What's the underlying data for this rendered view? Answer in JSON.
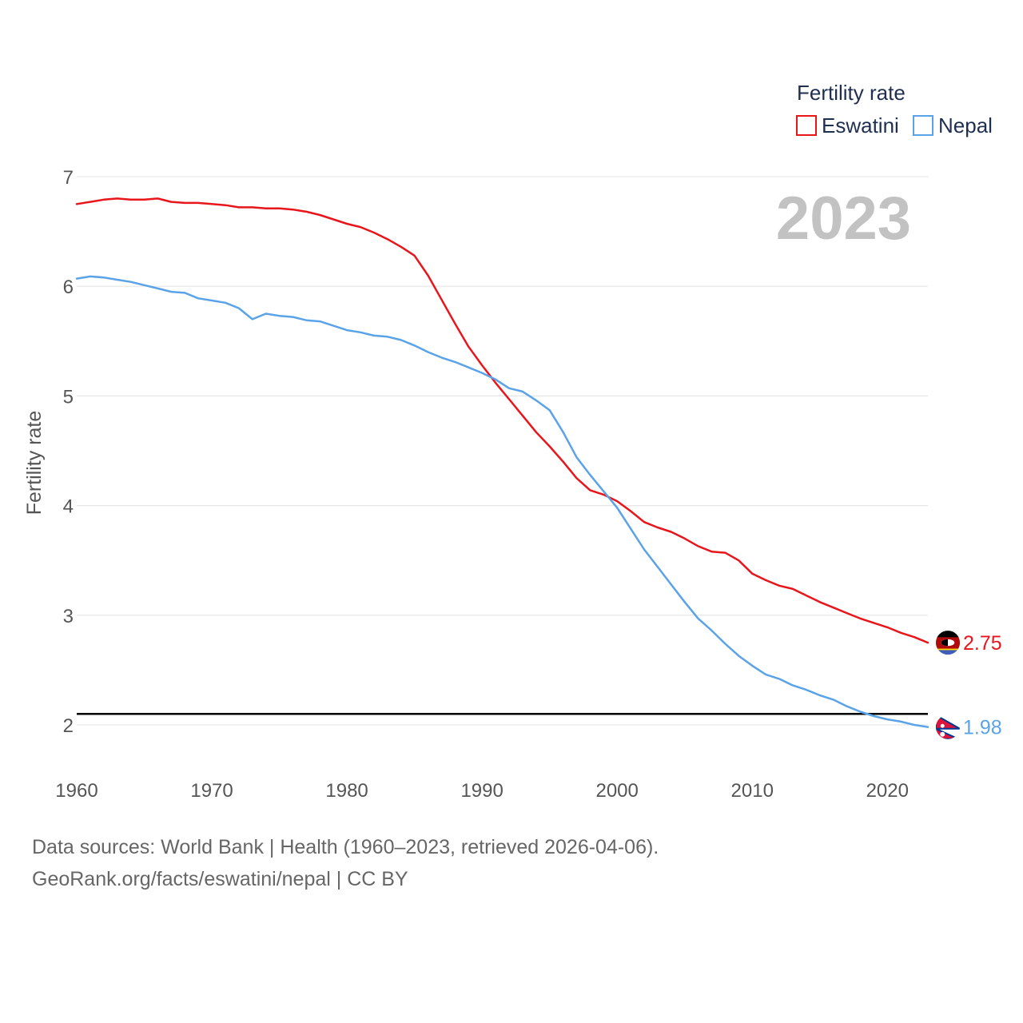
{
  "chart_data": {
    "type": "line",
    "title": "",
    "ylabel": "Fertility rate",
    "xlabel": "",
    "xlim": [
      1960,
      2023
    ],
    "ylim": [
      1.7,
      7.0
    ],
    "xticks": [
      1960,
      1970,
      1980,
      1990,
      2000,
      2010,
      2020
    ],
    "yticks": [
      2,
      3,
      4,
      5,
      6,
      7
    ],
    "year_label": "2023",
    "legend_title": "Fertility rate",
    "reference_line": 2.1,
    "x": [
      1960,
      1961,
      1962,
      1963,
      1964,
      1965,
      1966,
      1967,
      1968,
      1969,
      1970,
      1971,
      1972,
      1973,
      1974,
      1975,
      1976,
      1977,
      1978,
      1979,
      1980,
      1981,
      1982,
      1983,
      1984,
      1985,
      1986,
      1987,
      1988,
      1989,
      1990,
      1991,
      1992,
      1993,
      1994,
      1995,
      1996,
      1997,
      1998,
      1999,
      2000,
      2001,
      2002,
      2003,
      2004,
      2005,
      2006,
      2007,
      2008,
      2009,
      2010,
      2011,
      2012,
      2013,
      2014,
      2015,
      2016,
      2017,
      2018,
      2019,
      2020,
      2021,
      2022,
      2023
    ],
    "series": [
      {
        "name": "Eswatini",
        "color": "#e8151b",
        "end_label": "2.75",
        "flag": "eswatini-flag",
        "values": [
          6.75,
          6.77,
          6.79,
          6.8,
          6.79,
          6.79,
          6.8,
          6.77,
          6.76,
          6.76,
          6.75,
          6.74,
          6.72,
          6.72,
          6.71,
          6.71,
          6.7,
          6.68,
          6.65,
          6.61,
          6.57,
          6.54,
          6.49,
          6.43,
          6.36,
          6.28,
          6.1,
          5.88,
          5.66,
          5.45,
          5.28,
          5.12,
          4.97,
          4.82,
          4.67,
          4.54,
          4.4,
          4.25,
          4.14,
          4.1,
          4.04,
          3.95,
          3.85,
          3.8,
          3.76,
          3.7,
          3.63,
          3.58,
          3.57,
          3.5,
          3.38,
          3.32,
          3.27,
          3.24,
          3.18,
          3.12,
          3.07,
          3.02,
          2.97,
          2.93,
          2.89,
          2.84,
          2.8,
          2.75
        ]
      },
      {
        "name": "Nepal",
        "color": "#5aa3e8",
        "end_label": "1.98",
        "flag": "nepal-flag",
        "values": [
          6.07,
          6.09,
          6.08,
          6.06,
          6.04,
          6.01,
          5.98,
          5.95,
          5.94,
          5.89,
          5.87,
          5.85,
          5.8,
          5.7,
          5.75,
          5.73,
          5.72,
          5.69,
          5.68,
          5.64,
          5.6,
          5.58,
          5.55,
          5.54,
          5.51,
          5.46,
          5.4,
          5.35,
          5.31,
          5.26,
          5.21,
          5.15,
          5.07,
          5.04,
          4.96,
          4.87,
          4.67,
          4.44,
          4.28,
          4.13,
          3.98,
          3.79,
          3.6,
          3.44,
          3.28,
          3.12,
          2.97,
          2.86,
          2.74,
          2.63,
          2.54,
          2.46,
          2.42,
          2.36,
          2.32,
          2.27,
          2.23,
          2.17,
          2.12,
          2.08,
          2.05,
          2.03,
          2.0,
          1.98
        ]
      }
    ]
  },
  "footer": {
    "line1": "Data sources: World Bank | Health (1960–2023, retrieved 2026-04-06).",
    "line2": "GeoRank.org/facts/eswatini/nepal | CC BY"
  }
}
